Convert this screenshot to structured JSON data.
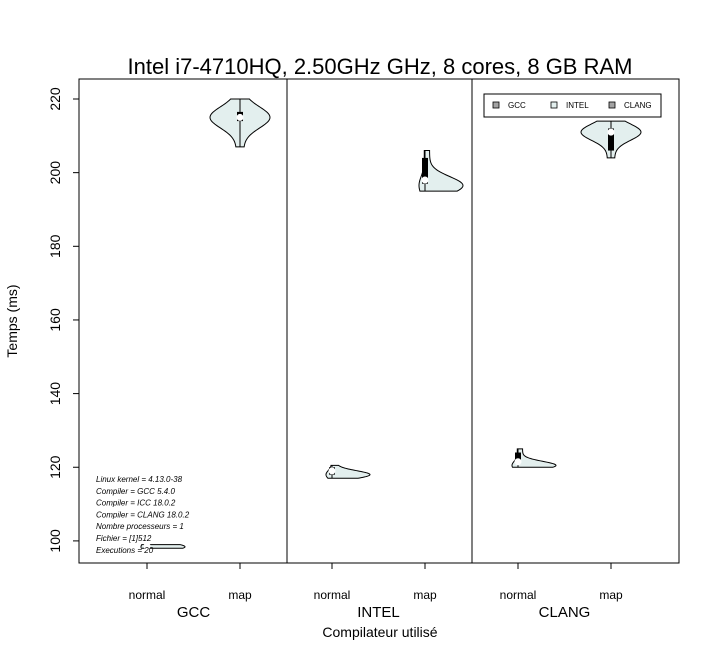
{
  "chart_data": {
    "type": "violin",
    "title": "Intel i7-4710HQ, 2.50GHz GHz, 8 cores, 8 GB RAM",
    "xlabel": "Compilateur utilisé",
    "ylabel": "Temps (ms)",
    "ylim": [
      93,
      225
    ],
    "yticks": [
      "100",
      "120",
      "140",
      "160",
      "180",
      "200",
      "220"
    ],
    "groups": [
      "GCC",
      "INTEL",
      "CLANG"
    ],
    "categories": [
      "normal",
      "map"
    ],
    "legend": {
      "position": "top-right",
      "entries": [
        "GCC",
        "INTEL",
        "CLANG"
      ],
      "colors": [
        "#a3a3a3",
        "#e3efee",
        "#a3a3a3"
      ]
    },
    "violin_fill": "#e3efee",
    "violins": [
      {
        "group": "GCC",
        "category": "normal",
        "min": 98,
        "max": 99,
        "q1": 98.3,
        "median": 98.6,
        "q3": 98.8,
        "mode": 98.4,
        "skew": "right"
      },
      {
        "group": "GCC",
        "category": "map",
        "min": 207,
        "max": 220,
        "q1": 214,
        "median": 215,
        "q3": 216.5,
        "mode": 215,
        "skew": "both"
      },
      {
        "group": "INTEL",
        "category": "normal",
        "min": 117,
        "max": 120.5,
        "q1": 118,
        "median": 119,
        "q3": 120,
        "mode": 118,
        "skew": "right"
      },
      {
        "group": "INTEL",
        "category": "map",
        "min": 195,
        "max": 206,
        "q1": 197,
        "median": 198,
        "q3": 204,
        "mode": 196.5,
        "skew": "right"
      },
      {
        "group": "CLANG",
        "category": "normal",
        "min": 120,
        "max": 125,
        "q1": 121,
        "median": 121.5,
        "q3": 124,
        "mode": 120.5,
        "skew": "right"
      },
      {
        "group": "CLANG",
        "category": "map",
        "min": 204,
        "max": 214,
        "q1": 206,
        "median": 211,
        "q3": 212,
        "mode": 211,
        "skew": "both"
      }
    ],
    "annotations": [
      "Linux kernel = 4.13.0-38",
      "Compiler = GCC 5.4.0",
      "Compiler = ICC 18.0.2",
      "Compiler = CLANG 18.0.2",
      "Nombre processeurs = 1",
      "Fichier = [1]512",
      "Executions = 20"
    ]
  }
}
